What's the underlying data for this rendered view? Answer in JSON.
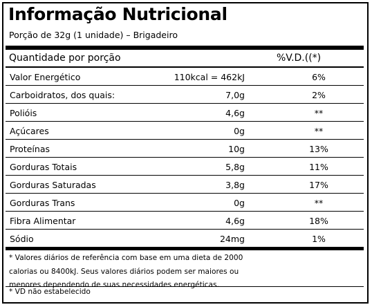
{
  "title": "Informação Nutricional",
  "portion": "Porção de 32g (1 unidade) – Brigadeiro",
  "header": {
    "quantity": "Quantidade por porção",
    "dv": "%V.D.((*)"
  },
  "rows": [
    {
      "name": "Valor Energético",
      "amount": "110kcal = 462kJ",
      "dv": "6%"
    },
    {
      "name": "Carboidratos, dos quais:",
      "amount": "7,0g",
      "dv": "2%"
    },
    {
      "name": "Polióis",
      "amount": "4,6g",
      "dv": "**"
    },
    {
      "name": "Açúcares",
      "amount": "0g",
      "dv": "**"
    },
    {
      "name": "Proteínas",
      "amount": "10g",
      "dv": "13%"
    },
    {
      "name": "Gorduras Totais",
      "amount": "5,8g",
      "dv": "11%"
    },
    {
      "name": "Gorduras Saturadas",
      "amount": "3,8g",
      "dv": "17%"
    },
    {
      "name": "Gorduras Trans",
      "amount": "0g",
      "dv": "**"
    },
    {
      "name": "Fibra Alimentar",
      "amount": "4,6g",
      "dv": "18%"
    },
    {
      "name": "Sódio",
      "amount": "24mg",
      "dv": "1%"
    }
  ],
  "footnote_lines": [
    "* Valores diários de referência com base em uma dieta de 2000",
    "calorias ou 8400kJ. Seus valores diários podem ser maiores ou",
    "menores dependendo de suas necessidades energéticas."
  ],
  "footnote_vd": "* VD não estabelecido"
}
